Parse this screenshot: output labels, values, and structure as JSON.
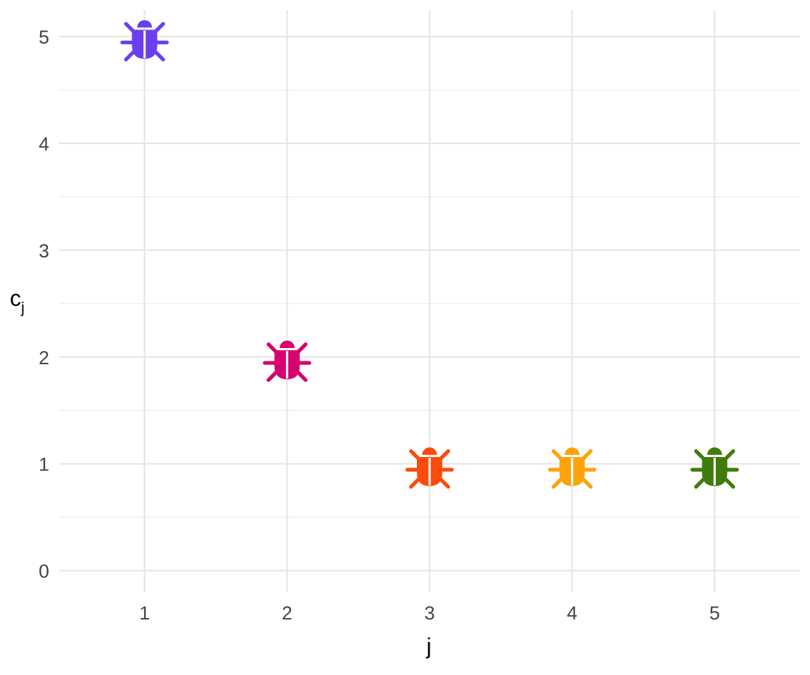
{
  "chart_data": {
    "type": "scatter",
    "title": "",
    "xlabel": "j",
    "ylabel": {
      "base": "c",
      "subscript": "j"
    },
    "x": [
      1,
      2,
      3,
      4,
      5
    ],
    "y": [
      5,
      2,
      1,
      1,
      1
    ],
    "point_colors": [
      "#6a3ff0",
      "#d6036f",
      "#fb4b0b",
      "#fca30d",
      "#3f7d0b"
    ],
    "marker": "bug-icon",
    "xlim": [
      0.4,
      5.6
    ],
    "ylim": [
      -0.2,
      5.25
    ],
    "x_ticks": [
      "1",
      "2",
      "3",
      "4",
      "5"
    ],
    "y_ticks": [
      "0",
      "1",
      "2",
      "3",
      "4",
      "5"
    ],
    "grid": true,
    "legend": "none"
  }
}
